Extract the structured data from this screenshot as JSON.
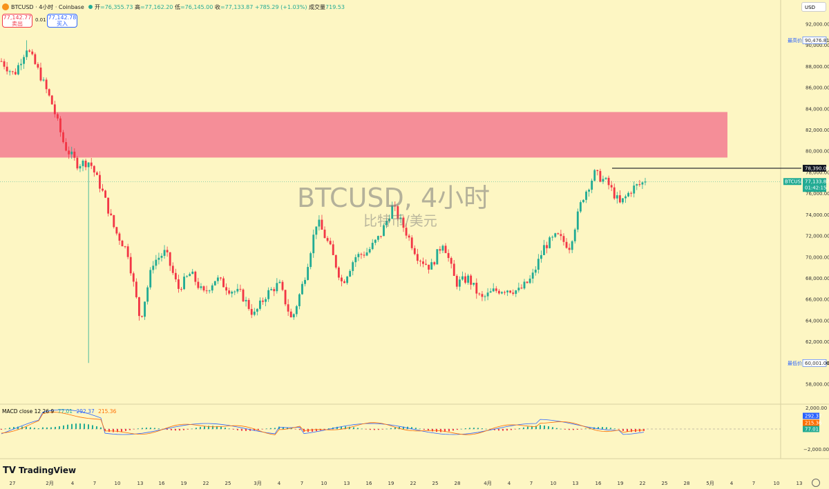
{
  "header": {
    "symbol": "BTCUSD · 4小时 · Coinbase",
    "open_label": "开",
    "open": "=76,355.73",
    "high_label": "高",
    "high": "=77,162.20",
    "low_label": "低",
    "low": "=76,145.00",
    "close_label": "收",
    "close": "=77,133.87",
    "change": "+785.29 (+1.03%)",
    "volume_label": "成交量",
    "volume": "719.53",
    "sell_price": "77,142.77",
    "sell_label": "卖出",
    "spread": "0.01",
    "buy_price": "77,142.78",
    "buy_label": "买入",
    "currency": "USD"
  },
  "watermark": {
    "title": "BTCUSD, 4小时",
    "subtitle": "比特币/美元"
  },
  "price_axis": {
    "ticks": [
      "92,000.00",
      "90,000.00",
      "88,000.00",
      "86,000.00",
      "84,000.00",
      "82,000.00",
      "80,000.00",
      "78,000.00",
      "76,000.00",
      "74,000.00",
      "72,000.00",
      "70,000.00",
      "68,000.00",
      "66,000.00",
      "64,000.00",
      "62,000.00",
      "60,000.00",
      "58,000.00"
    ],
    "high_tag_label": "最高价",
    "high_tag_value": "90,476.81",
    "low_tag_label": "最低价",
    "low_tag_value": "60,001.00",
    "level_value": "78,390.00",
    "current_symbol": "BTCUSD",
    "current_value": "77,133.87",
    "current_timer": "01:42:15"
  },
  "macd": {
    "label": "MACD close 12 26 9",
    "v1": "77.01",
    "v2": "292.37",
    "v3": "215.36",
    "axis_ticks": [
      "2,000.00",
      "−2,000.00"
    ],
    "tag_top": "292.37",
    "tag_mid": "215.36",
    "tag_bot": "77.01"
  },
  "time_axis": [
    "27",
    "2月",
    "4",
    "7",
    "10",
    "13",
    "16",
    "19",
    "22",
    "25",
    "3月",
    "4",
    "7",
    "10",
    "13",
    "16",
    "19",
    "22",
    "25",
    "28",
    "4月",
    "4",
    "7",
    "10",
    "13",
    "16",
    "19",
    "22",
    "25",
    "28",
    "5月",
    "4",
    "7",
    "10",
    "13"
  ],
  "logo": "TradingView",
  "colors": {
    "up": "#22ab94",
    "down": "#f23645",
    "zone": "#f58e98",
    "bg": "#fdf6c3"
  },
  "chart_data": {
    "type": "candlestick",
    "xlabel": "",
    "ylabel": "",
    "ylim": [
      57000,
      92500
    ],
    "resistance_zone": [
      79400,
      83700
    ],
    "level": 78390,
    "current_price": 77133.87,
    "period_high": 90476.81,
    "period_low": 60001.0,
    "series": [
      {
        "name": "BTCUSD",
        "x": [
          "01-27",
          "01-28",
          "01-29",
          "01-30",
          "01-31",
          "02-01",
          "02-02",
          "02-03",
          "02-04",
          "02-05",
          "02-06",
          "02-07",
          "02-08",
          "02-10",
          "02-12",
          "02-14",
          "02-16",
          "02-18",
          "02-20",
          "02-22",
          "02-24",
          "02-26",
          "02-28",
          "03-01",
          "03-03",
          "03-05",
          "03-07",
          "03-09",
          "03-11",
          "03-13",
          "03-15",
          "03-17",
          "03-19",
          "03-21",
          "03-23",
          "03-25",
          "03-27",
          "03-29",
          "03-31",
          "04-02",
          "04-04",
          "04-06",
          "04-08",
          "04-10",
          "04-12",
          "04-14",
          "04-16",
          "04-17",
          "04-18",
          "04-20",
          "04-21",
          "04-22"
        ],
        "close": [
          88500,
          87200,
          89800,
          87400,
          84500,
          80500,
          78800,
          79000,
          76200,
          72500,
          70500,
          64000,
          69500,
          70500,
          67000,
          68500,
          66500,
          68000,
          67000,
          66500,
          64500,
          66500,
          67500,
          64000,
          68000,
          73500,
          71000,
          67500,
          70000,
          70500,
          72000,
          74800,
          72500,
          70000,
          69000,
          71500,
          67500,
          68000,
          66000,
          66800,
          67000,
          66800,
          68000,
          71000,
          72000,
          71000,
          75500,
          77900,
          77000,
          75000,
          76500,
          77133.87
        ]
      }
    ]
  }
}
